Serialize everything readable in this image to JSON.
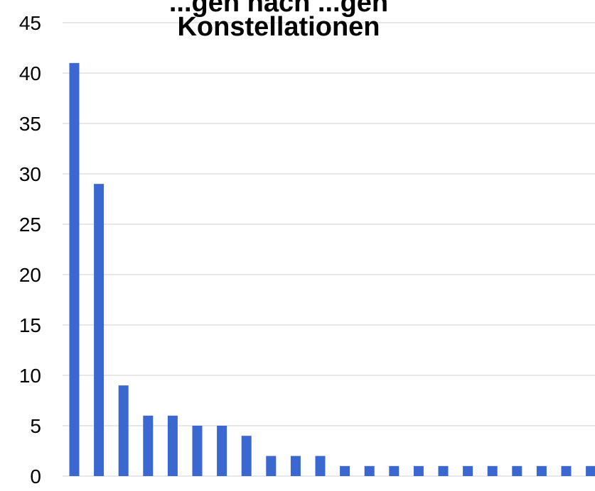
{
  "chart_data": {
    "type": "bar",
    "title_lines": [
      "...gen nach ...gen",
      "Konstellationen"
    ],
    "xlabel": "",
    "ylabel": "",
    "ylim": [
      0,
      45
    ],
    "yticks": [
      0,
      5,
      10,
      15,
      20,
      25,
      30,
      35,
      40,
      45
    ],
    "grid": true,
    "legend": "none",
    "bar_color": "#3a67d0",
    "series": [
      {
        "values": [
          41,
          29,
          9,
          6,
          6,
          5,
          5,
          4,
          2,
          2,
          2,
          1,
          1,
          1,
          1,
          1,
          1,
          1,
          1,
          1,
          1,
          1
        ]
      }
    ]
  }
}
